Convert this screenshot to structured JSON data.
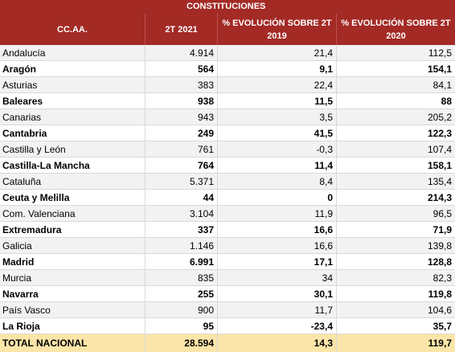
{
  "header": {
    "group_title": "CONSTITUCIONES",
    "col_region": "CC.AA.",
    "col_2t2021": "2T 2021",
    "col_evo2019": "% EVOLUCIÓN SOBRE 2T 2019",
    "col_evo2020": "% EVOLUCIÓN SOBRE 2T 2020"
  },
  "rows": [
    {
      "region": "Andalucía",
      "v2021": "4.914",
      "evo2019": "21,4",
      "evo2020": "112,5",
      "bold": false
    },
    {
      "region": "Aragón",
      "v2021": "564",
      "evo2019": "9,1",
      "evo2020": "154,1",
      "bold": true
    },
    {
      "region": "Asturias",
      "v2021": "383",
      "evo2019": "22,4",
      "evo2020": "84,1",
      "bold": false
    },
    {
      "region": "Baleares",
      "v2021": "938",
      "evo2019": "11,5",
      "evo2020": "88",
      "bold": true
    },
    {
      "region": "Canarias",
      "v2021": "943",
      "evo2019": "3,5",
      "evo2020": "205,2",
      "bold": false
    },
    {
      "region": "Cantabria",
      "v2021": "249",
      "evo2019": "41,5",
      "evo2020": "122,3",
      "bold": true
    },
    {
      "region": "Castilla y León",
      "v2021": "761",
      "evo2019": "-0,3",
      "evo2020": "107,4",
      "bold": false
    },
    {
      "region": "Castilla-La Mancha",
      "v2021": "764",
      "evo2019": "11,4",
      "evo2020": "158,1",
      "bold": true
    },
    {
      "region": "Cataluña",
      "v2021": "5.371",
      "evo2019": "8,4",
      "evo2020": "135,4",
      "bold": false
    },
    {
      "region": "Ceuta y Melilla",
      "v2021": "44",
      "evo2019": "0",
      "evo2020": "214,3",
      "bold": true
    },
    {
      "region": "Com. Valenciana",
      "v2021": "3.104",
      "evo2019": "11,9",
      "evo2020": "96,5",
      "bold": false
    },
    {
      "region": "Extremadura",
      "v2021": "337",
      "evo2019": "16,6",
      "evo2020": "71,9",
      "bold": true
    },
    {
      "region": "Galicia",
      "v2021": "1.146",
      "evo2019": "16,6",
      "evo2020": "139,8",
      "bold": false
    },
    {
      "region": "Madrid",
      "v2021": "6.991",
      "evo2019": "17,1",
      "evo2020": "128,8",
      "bold": true
    },
    {
      "region": "Murcia",
      "v2021": "835",
      "evo2019": "34",
      "evo2020": "82,3",
      "bold": false
    },
    {
      "region": "Navarra",
      "v2021": "255",
      "evo2019": "30,1",
      "evo2020": "119,8",
      "bold": true
    },
    {
      "region": "País Vasco",
      "v2021": "900",
      "evo2019": "11,7",
      "evo2020": "104,6",
      "bold": false
    },
    {
      "region": "La Rioja",
      "v2021": "95",
      "evo2019": "-23,4",
      "evo2020": "35,7",
      "bold": true
    }
  ],
  "total": {
    "region": "TOTAL NACIONAL",
    "v2021": "28.594",
    "evo2019": "14,3",
    "evo2020": "119,7"
  },
  "colors": {
    "header_bg": "#a32a25",
    "total_bg": "#fbe5a8",
    "alt_row_bg": "#f2f2f2"
  }
}
